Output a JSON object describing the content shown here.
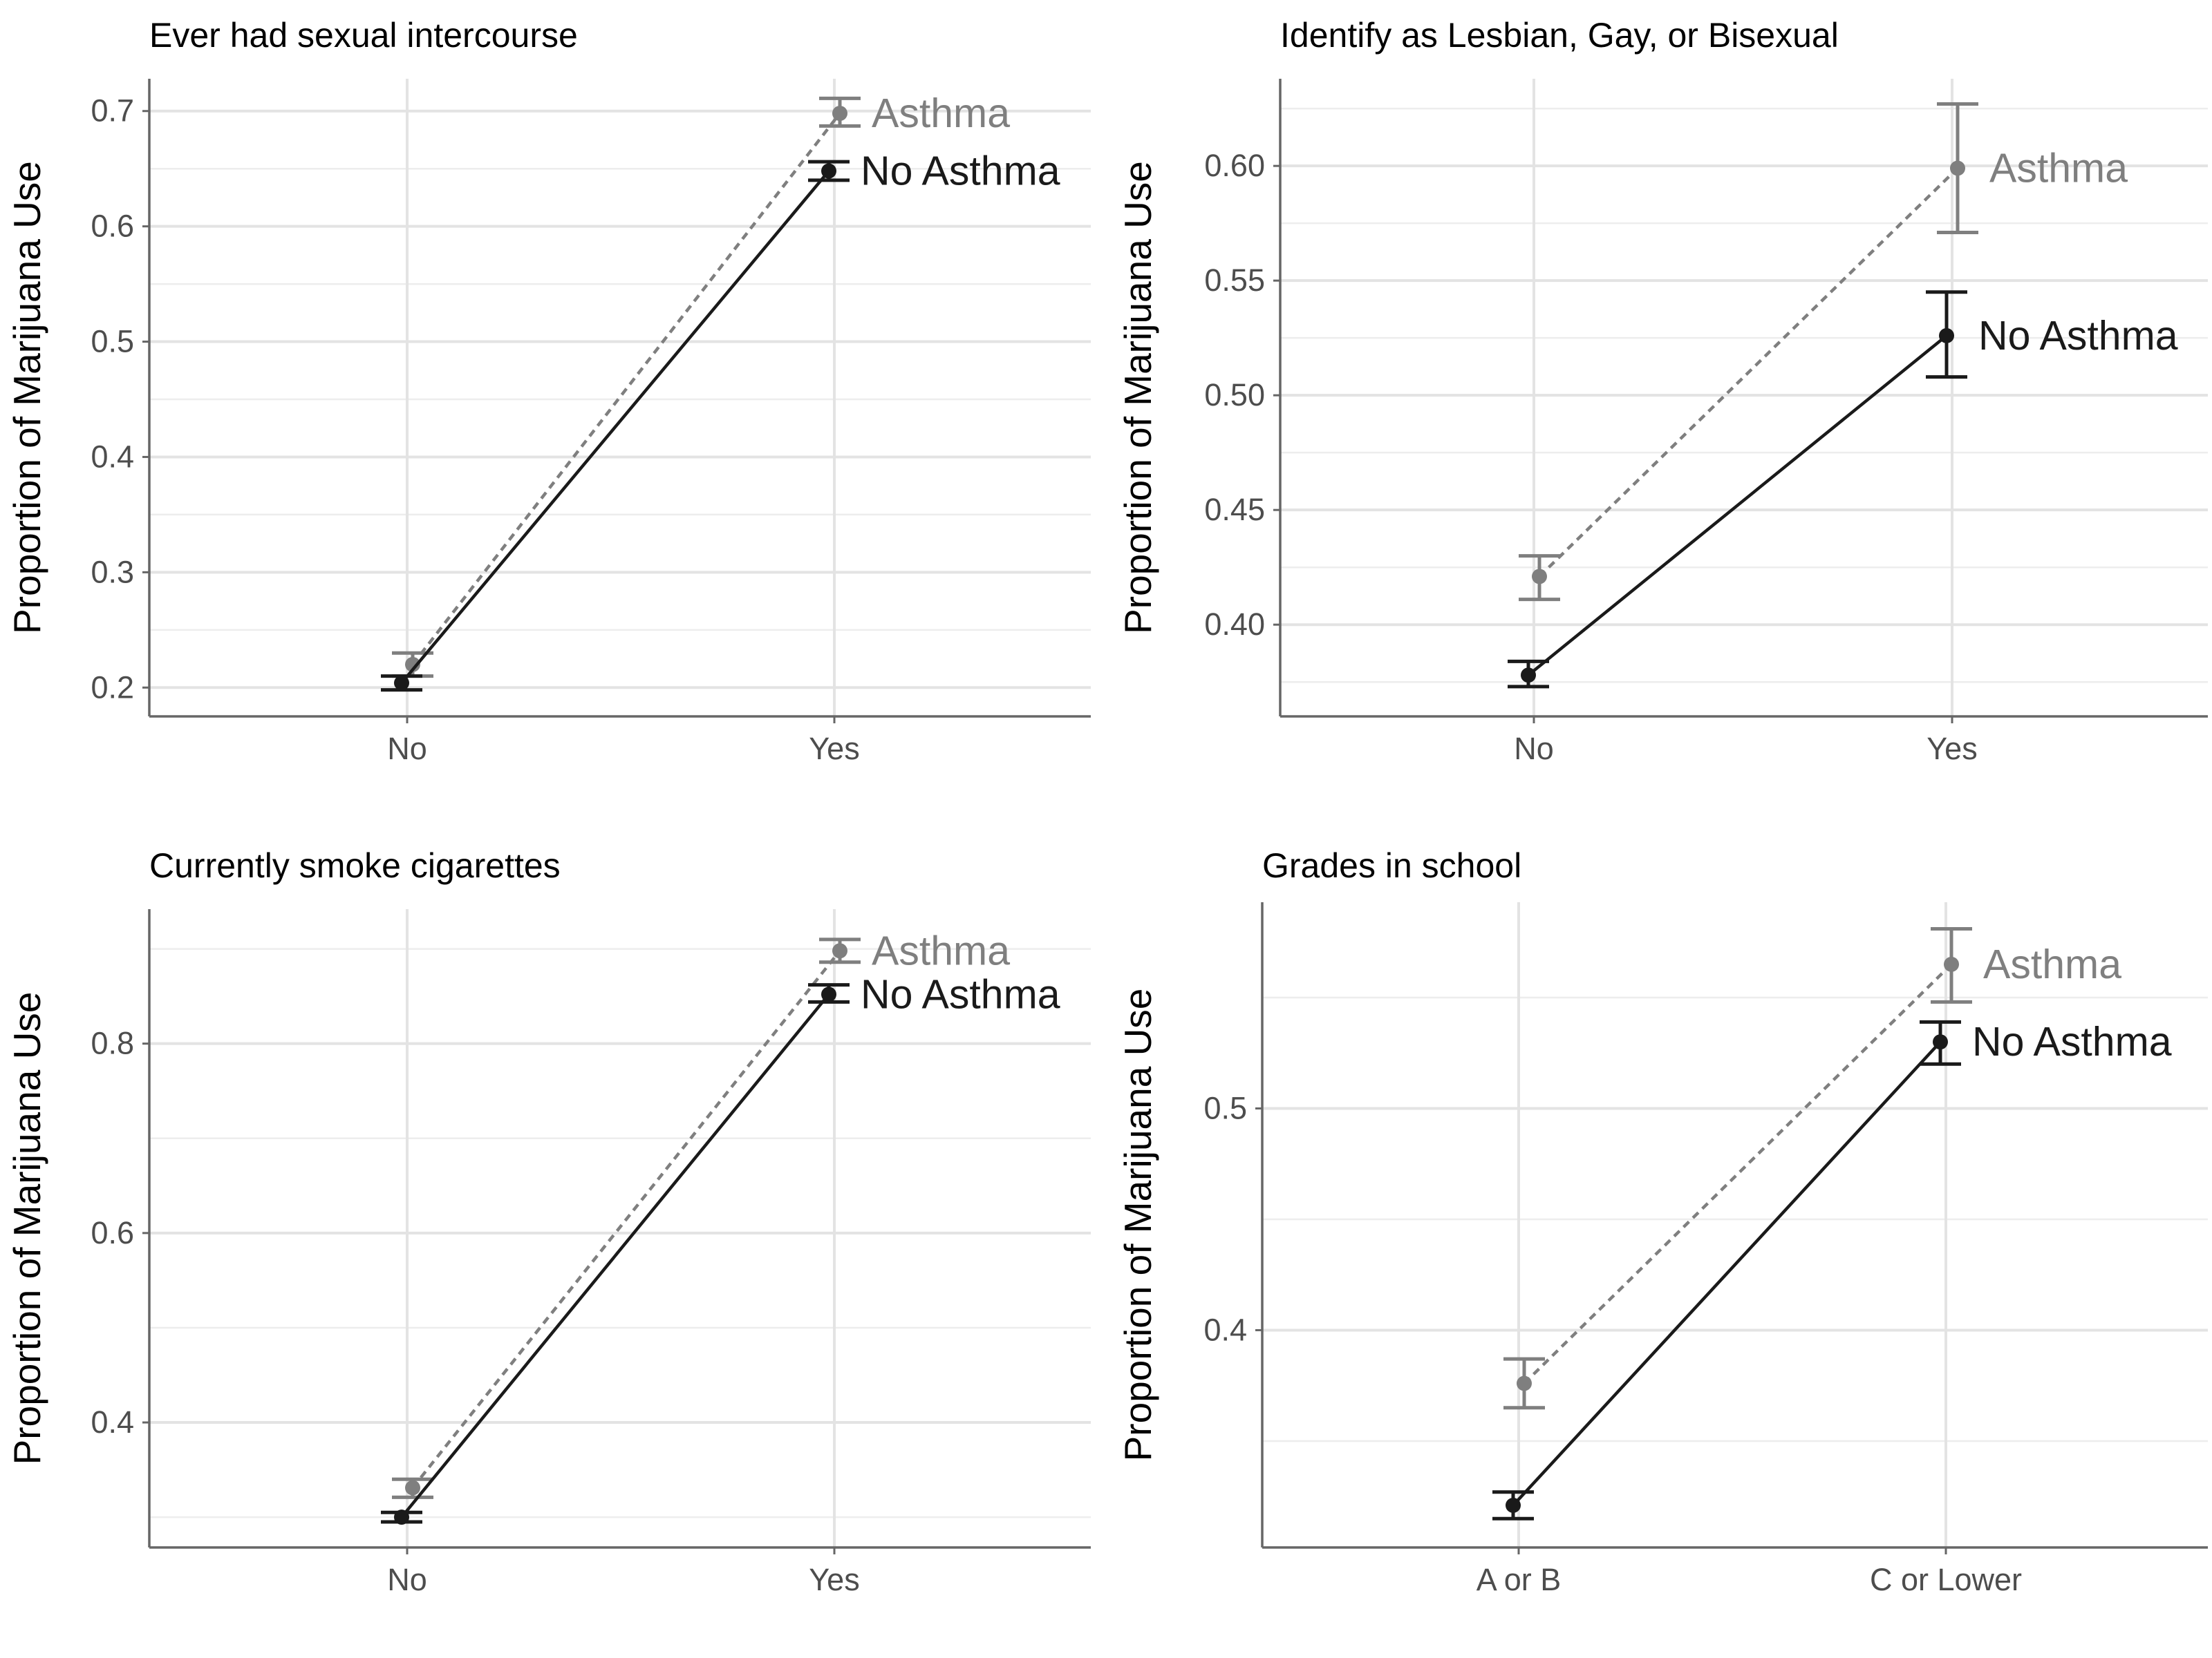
{
  "chart_data": [
    {
      "type": "line",
      "title": "Ever had sexual intercourse",
      "ylabel": "Proportion of Marijuana Use",
      "xlabel": "",
      "categories": [
        "No",
        "Yes"
      ],
      "ylim": [
        0.175,
        0.728
      ],
      "yticks": [
        0.2,
        0.3,
        0.4,
        0.5,
        0.6,
        0.7
      ],
      "ytick_labels": [
        "0.2",
        "0.3",
        "0.4",
        "0.5",
        "0.6",
        "0.7"
      ],
      "grid": true,
      "series": [
        {
          "name": "Asthma",
          "color": "#7f7f7f",
          "line_style": "dashed",
          "values": [
            0.22,
            0.698
          ],
          "err_low": [
            0.21,
            0.687
          ],
          "err_high": [
            0.23,
            0.711
          ]
        },
        {
          "name": "No Asthma",
          "color": "#1a1a1a",
          "line_style": "solid",
          "values": [
            0.204,
            0.648
          ],
          "err_low": [
            0.198,
            0.64
          ],
          "err_high": [
            0.21,
            0.656
          ]
        }
      ]
    },
    {
      "type": "line",
      "title": "Identify as Lesbian, Gay, or Bisexual",
      "ylabel": "Proportion of Marijuana Use",
      "xlabel": "",
      "categories": [
        "No",
        "Yes"
      ],
      "ylim": [
        0.36,
        0.638
      ],
      "yticks": [
        0.4,
        0.45,
        0.5,
        0.55,
        0.6
      ],
      "ytick_labels": [
        "0.40",
        "0.45",
        "0.50",
        "0.55",
        "0.60"
      ],
      "grid": true,
      "series": [
        {
          "name": "Asthma",
          "color": "#7f7f7f",
          "line_style": "dashed",
          "values": [
            0.421,
            0.599
          ],
          "err_low": [
            0.411,
            0.571
          ],
          "err_high": [
            0.43,
            0.627
          ]
        },
        {
          "name": "No Asthma",
          "color": "#1a1a1a",
          "line_style": "solid",
          "values": [
            0.378,
            0.526
          ],
          "err_low": [
            0.373,
            0.508
          ],
          "err_high": [
            0.384,
            0.545
          ]
        }
      ]
    },
    {
      "type": "line",
      "title": "Currently smoke cigarettes",
      "ylabel": "Proportion of Marijuana Use",
      "xlabel": "",
      "categories": [
        "No",
        "Yes"
      ],
      "ylim": [
        0.268,
        0.942
      ],
      "yticks": [
        0.4,
        0.6,
        0.8
      ],
      "ytick_labels": [
        "0.4",
        "0.6",
        "0.8"
      ],
      "grid": true,
      "series": [
        {
          "name": "Asthma",
          "color": "#7f7f7f",
          "line_style": "dashed",
          "values": [
            0.331,
            0.898
          ],
          "err_low": [
            0.321,
            0.886
          ],
          "err_high": [
            0.34,
            0.91
          ]
        },
        {
          "name": "No Asthma",
          "color": "#1a1a1a",
          "line_style": "solid",
          "values": [
            0.3,
            0.852
          ],
          "err_low": [
            0.295,
            0.844
          ],
          "err_high": [
            0.305,
            0.862
          ]
        }
      ]
    },
    {
      "type": "line",
      "title": "Grades in school",
      "ylabel": "Proportion of Marijuana Use",
      "xlabel": "",
      "categories": [
        "A or B",
        "C or Lower"
      ],
      "ylim": [
        0.302,
        0.593
      ],
      "yticks": [
        0.4,
        0.5
      ],
      "ytick_labels": [
        "0.4",
        "0.5"
      ],
      "grid": true,
      "series": [
        {
          "name": "Asthma",
          "color": "#7f7f7f",
          "line_style": "dashed",
          "values": [
            0.376,
            0.565
          ],
          "err_low": [
            0.365,
            0.548
          ],
          "err_high": [
            0.387,
            0.581
          ]
        },
        {
          "name": "No Asthma",
          "color": "#1a1a1a",
          "line_style": "solid",
          "values": [
            0.321,
            0.53
          ],
          "err_low": [
            0.315,
            0.52
          ],
          "err_high": [
            0.327,
            0.539
          ]
        }
      ]
    }
  ]
}
